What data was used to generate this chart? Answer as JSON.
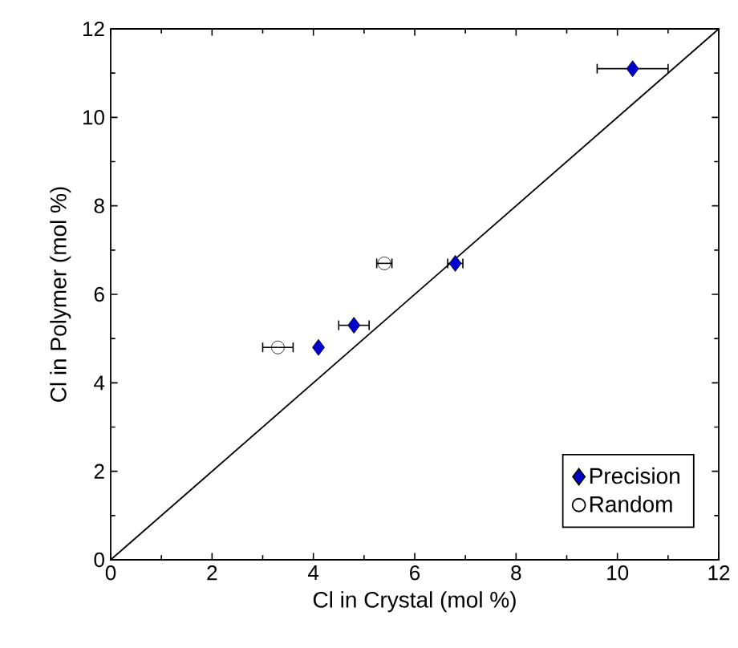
{
  "chart_data": {
    "type": "scatter",
    "xlabel": "Cl in Crystal (mol %)",
    "ylabel": "Cl in Polymer (mol %)",
    "xlim": [
      0,
      12
    ],
    "ylim": [
      0,
      12
    ],
    "xticks": [
      0,
      2,
      4,
      6,
      8,
      10,
      12
    ],
    "yticks": [
      0,
      2,
      4,
      6,
      8,
      10,
      12
    ],
    "grid": false,
    "legend": "bottom right",
    "series": [
      {
        "name": "Precision",
        "color": "#000000",
        "marker": "diamond",
        "x": [
          10.3,
          6.8,
          4.8,
          4.1
        ],
        "values": [
          11.1,
          6.7,
          5.3,
          4.8
        ],
        "xerrors": [
          0.7,
          0.15,
          0.3,
          null
        ]
      },
      {
        "name": "Random",
        "color": "#000000",
        "marker": "circle",
        "x": [
          3.3,
          5.4
        ],
        "values": [
          4.8,
          6.7
        ],
        "xerrors": [
          0.3,
          0.15
        ]
      },
      {
        "type": "line",
        "color": "#000000",
        "marker": "none",
        "x": [
          0,
          12
        ],
        "values": [
          0,
          12
        ]
      }
    ]
  }
}
